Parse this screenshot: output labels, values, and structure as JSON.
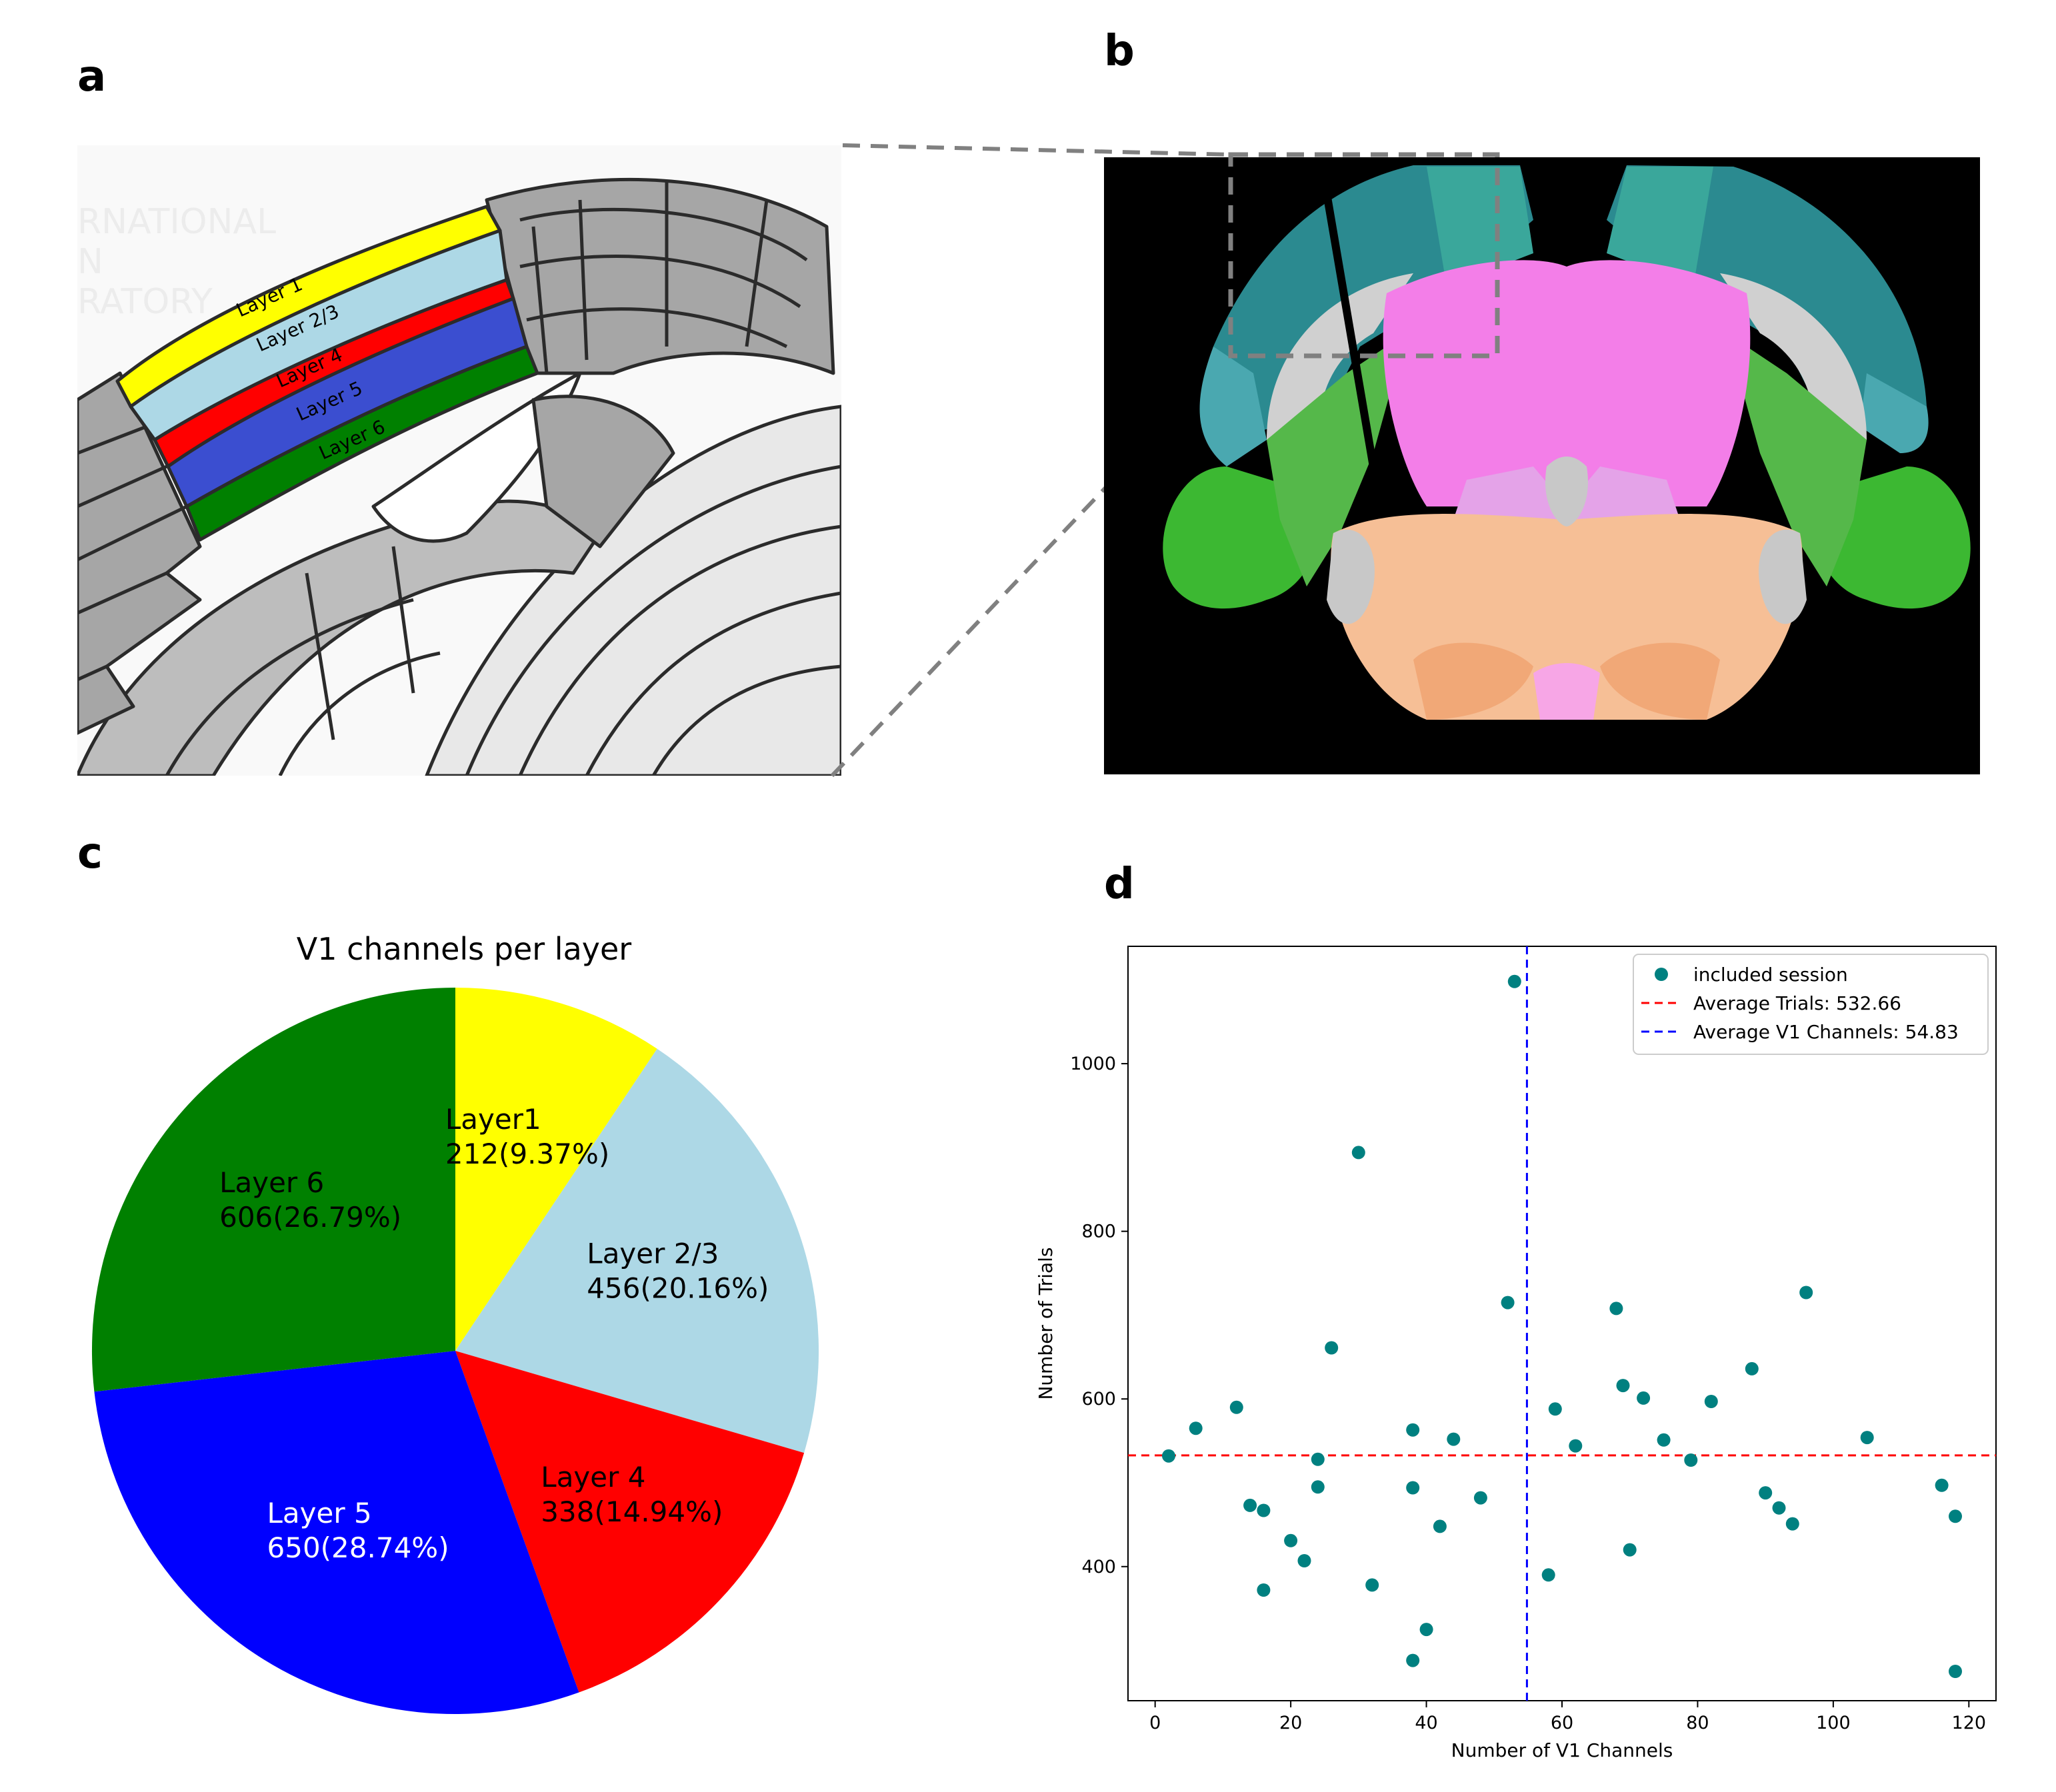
{
  "panels": {
    "a": "a",
    "b": "b",
    "c": "c",
    "d": "d"
  },
  "panel_a": {
    "layer_labels": [
      "Layer 1",
      "Layer 2/3",
      "Layer 4",
      "Layer 5",
      "Layer 6"
    ],
    "watermark": [
      "RNATIONAL",
      "N",
      "RATORY"
    ]
  },
  "chart_data": [
    {
      "type": "pie",
      "title": "V1 channels per layer",
      "slices": [
        {
          "label": "Layer1",
          "value": 212,
          "value_text": "212(9.37%)",
          "color": "#ffff00",
          "text_color": "#000000"
        },
        {
          "label": "Layer 2/3",
          "value": 456,
          "value_text": "456(20.16%)",
          "color": "#add8e6",
          "text_color": "#000000"
        },
        {
          "label": "Layer 4",
          "value": 338,
          "value_text": "338(14.94%)",
          "color": "#ff0000",
          "text_color": "#000000"
        },
        {
          "label": "Layer 5",
          "value": 650,
          "value_text": "650(28.74%)",
          "color": "#0000ff",
          "text_color": "#ffffff"
        },
        {
          "label": "Layer 6",
          "value": 606,
          "value_text": "606(26.79%)",
          "color": "#008000",
          "text_color": "#000000"
        }
      ],
      "start_angle_deg": 90,
      "direction": "clockwise"
    },
    {
      "type": "scatter",
      "xlabel": "Number of V1 Channels",
      "ylabel": "Number of Trials",
      "xlim": [
        -4,
        124
      ],
      "ylim": [
        240,
        1140
      ],
      "xticks": [
        0,
        20,
        40,
        60,
        80,
        100,
        120
      ],
      "yticks": [
        400,
        600,
        800,
        1000
      ],
      "series": [
        {
          "name": "included session",
          "color": "#008080",
          "points": [
            [
              2,
              532
            ],
            [
              6,
              565
            ],
            [
              12,
              590
            ],
            [
              14,
              473
            ],
            [
              16,
              467
            ],
            [
              16,
              372
            ],
            [
              20,
              431
            ],
            [
              22,
              407
            ],
            [
              24,
              528
            ],
            [
              24,
              495
            ],
            [
              26,
              661
            ],
            [
              30,
              894
            ],
            [
              32,
              378
            ],
            [
              38,
              563
            ],
            [
              38,
              494
            ],
            [
              38,
              288
            ],
            [
              40,
              325
            ],
            [
              42,
              448
            ],
            [
              44,
              552
            ],
            [
              48,
              482
            ],
            [
              52,
              715
            ],
            [
              53,
              1098
            ],
            [
              58,
              390
            ],
            [
              59,
              588
            ],
            [
              62,
              544
            ],
            [
              68,
              708
            ],
            [
              69,
              616
            ],
            [
              70,
              420
            ],
            [
              72,
              601
            ],
            [
              75,
              551
            ],
            [
              79,
              527
            ],
            [
              82,
              597
            ],
            [
              88,
              636
            ],
            [
              90,
              488
            ],
            [
              92,
              470
            ],
            [
              94,
              451
            ],
            [
              96,
              727
            ],
            [
              105,
              554
            ],
            [
              116,
              497
            ],
            [
              118,
              460
            ],
            [
              118,
              275
            ]
          ]
        }
      ],
      "reference_lines": [
        {
          "orientation": "horizontal",
          "value": 532.66,
          "label": "Average Trials: 532.66",
          "color": "#ff0000"
        },
        {
          "orientation": "vertical",
          "value": 54.83,
          "label": "Average V1 Channels: 54.83",
          "color": "#0000ff"
        }
      ],
      "legend": "top-right"
    }
  ]
}
